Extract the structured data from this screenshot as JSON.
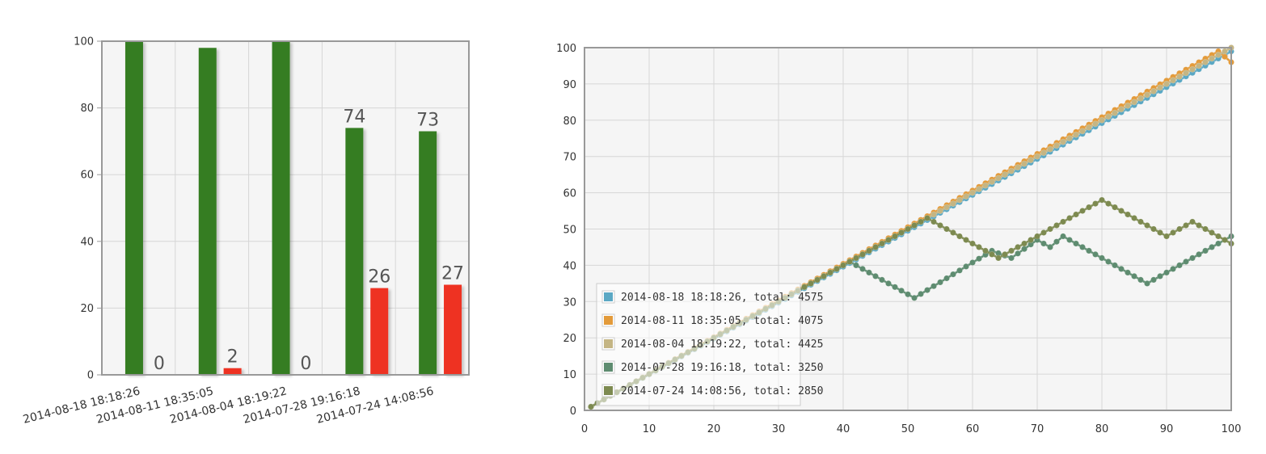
{
  "chart_data": [
    {
      "type": "bar",
      "categories": [
        "2014-08-18 18:18:26",
        "2014-08-11 18:35:05",
        "2014-08-04 18:19:22",
        "2014-07-28 19:16:18",
        "2014-07-24 14:08:56"
      ],
      "series": [
        {
          "values": [
            100,
            98,
            100,
            74,
            73
          ],
          "color": "#367d22",
          "data_labels": [
            "",
            "",
            "",
            "74",
            "73"
          ]
        },
        {
          "values": [
            0,
            2,
            0,
            26,
            27
          ],
          "color": "#ee3322",
          "data_labels": [
            "0",
            "2",
            "0",
            "26",
            "27"
          ]
        }
      ],
      "ylim": [
        0,
        100
      ],
      "yticks": [
        0,
        20,
        40,
        60,
        80,
        100
      ],
      "grid": true,
      "background": "#f5f5f5"
    },
    {
      "type": "line",
      "xlim": [
        0,
        100
      ],
      "ylim": [
        0,
        100
      ],
      "xticks": [
        0,
        10,
        20,
        30,
        40,
        50,
        60,
        70,
        80,
        90,
        100
      ],
      "yticks": [
        0,
        10,
        20,
        30,
        40,
        50,
        60,
        70,
        80,
        90,
        100
      ],
      "grid": true,
      "legend_position": "bottom-left",
      "markers": "circle",
      "background": "#f5f5f5",
      "series": [
        {
          "name": "2014-08-18 18:18:26, total: 4575",
          "color": "#5ba8c4",
          "points": [
            [
              1,
              1
            ],
            [
              100,
              99
            ]
          ]
        },
        {
          "name": "2014-08-11 18:35:05, total: 4075",
          "color": "#e39b3b",
          "points": [
            [
              1,
              1
            ],
            [
              98,
              99
            ],
            [
              100,
              96
            ]
          ]
        },
        {
          "name": "2014-08-04 18:19:22, total: 4425",
          "color": "#c4b584",
          "points": [
            [
              1,
              1
            ],
            [
              100,
              100
            ]
          ]
        },
        {
          "name": "2014-07-28 19:16:18, total: 3250",
          "color": "#5e8c70",
          "points": [
            [
              1,
              1
            ],
            [
              41,
              41
            ],
            [
              51,
              31
            ],
            [
              63,
              44
            ],
            [
              66,
              42
            ],
            [
              70,
              47
            ],
            [
              72,
              45
            ],
            [
              74,
              48
            ],
            [
              87,
              35
            ],
            [
              100,
              48
            ]
          ]
        },
        {
          "name": "2014-07-24 14:08:56, total: 2850",
          "color": "#7d8a50",
          "points": [
            [
              1,
              1
            ],
            [
              53,
              53
            ],
            [
              64,
              42
            ],
            [
              80,
              58
            ],
            [
              90,
              48
            ],
            [
              94,
              52
            ],
            [
              100,
              46
            ]
          ]
        }
      ]
    }
  ]
}
